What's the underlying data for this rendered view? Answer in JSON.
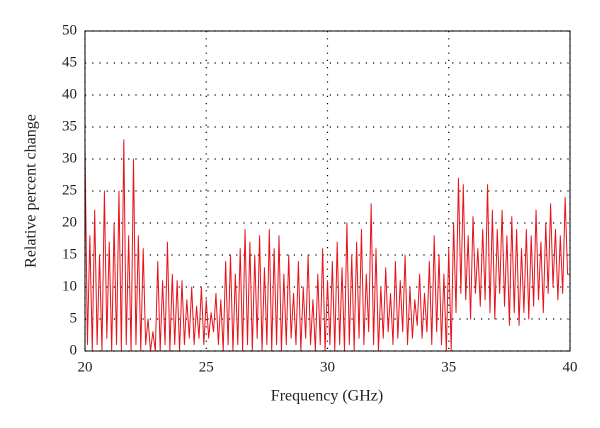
{
  "chart_data": {
    "type": "line",
    "x_label": "Frequency (GHz)",
    "y_label": "Relative percent change",
    "x": [
      20.0,
      20.1,
      20.2,
      20.3,
      20.4,
      20.5,
      20.6,
      20.7,
      20.8,
      20.9,
      21.0,
      21.1,
      21.2,
      21.3,
      21.4,
      21.5,
      21.6,
      21.7,
      21.8,
      21.9,
      22.0,
      22.1,
      22.2,
      22.3,
      22.4,
      22.5,
      22.6,
      22.7,
      22.8,
      22.9,
      23.0,
      23.1,
      23.2,
      23.3,
      23.4,
      23.5,
      23.6,
      23.7,
      23.8,
      23.9,
      24.0,
      24.1,
      24.2,
      24.3,
      24.4,
      24.5,
      24.6,
      24.7,
      24.8,
      24.9,
      25.0,
      25.1,
      25.2,
      25.3,
      25.4,
      25.5,
      25.6,
      25.7,
      25.8,
      25.9,
      26.0,
      26.1,
      26.2,
      26.3,
      26.4,
      26.5,
      26.6,
      26.7,
      26.8,
      26.9,
      27.0,
      27.1,
      27.2,
      27.3,
      27.4,
      27.5,
      27.6,
      27.7,
      27.8,
      27.9,
      28.0,
      28.1,
      28.2,
      28.3,
      28.4,
      28.5,
      28.6,
      28.7,
      28.8,
      28.9,
      29.0,
      29.1,
      29.2,
      29.3,
      29.4,
      29.5,
      29.6,
      29.7,
      29.8,
      29.9,
      30.0,
      30.1,
      30.2,
      30.3,
      30.4,
      30.5,
      30.6,
      30.7,
      30.8,
      30.9,
      31.0,
      31.1,
      31.2,
      31.3,
      31.4,
      31.5,
      31.6,
      31.7,
      31.8,
      31.9,
      32.0,
      32.1,
      32.2,
      32.3,
      32.4,
      32.5,
      32.6,
      32.7,
      32.8,
      32.9,
      33.0,
      33.1,
      33.2,
      33.3,
      33.4,
      33.5,
      33.6,
      33.7,
      33.8,
      33.9,
      34.0,
      34.1,
      34.2,
      34.3,
      34.4,
      34.5,
      34.6,
      34.7,
      34.8,
      34.9,
      35.0,
      35.1,
      35.2,
      35.3,
      35.4,
      35.5,
      35.6,
      35.7,
      35.8,
      35.9,
      36.0,
      36.1,
      36.2,
      36.3,
      36.4,
      36.5,
      36.6,
      36.7,
      36.8,
      36.9,
      37.0,
      37.1,
      37.2,
      37.3,
      37.4,
      37.5,
      37.6,
      37.7,
      37.8,
      37.9,
      38.0,
      38.1,
      38.2,
      38.3,
      38.4,
      38.5,
      38.6,
      38.7,
      38.8,
      38.9,
      39.0,
      39.1,
      39.2,
      39.3,
      39.4,
      39.5,
      39.6,
      39.7,
      39.8,
      39.9,
      40.0
    ],
    "values": [
      32,
      1,
      18,
      0,
      22,
      1,
      15,
      0,
      25,
      2,
      17,
      0,
      20,
      1,
      25,
      0,
      33,
      1,
      18,
      0,
      30,
      1,
      18,
      0,
      16,
      1,
      5,
      0,
      3,
      0,
      14,
      0,
      11,
      1,
      17,
      0,
      12,
      1,
      11,
      0,
      11,
      1,
      8,
      2,
      10,
      1,
      7,
      2,
      10,
      1,
      8,
      2,
      6,
      3,
      9,
      1,
      8,
      0,
      14,
      1,
      15,
      0,
      12,
      1,
      16,
      0,
      19,
      1,
      17,
      0,
      15,
      2,
      18,
      0,
      13,
      1,
      19,
      0,
      16,
      1,
      18,
      0,
      12,
      1,
      15,
      2,
      9,
      1,
      14,
      0,
      10,
      2,
      15,
      1,
      8,
      0,
      12,
      1,
      16,
      0,
      11,
      1,
      14,
      0,
      17,
      1,
      13,
      0,
      20,
      1,
      15,
      0,
      17,
      2,
      19,
      1,
      12,
      3,
      23,
      1,
      16,
      0,
      10,
      2,
      13,
      3,
      9,
      1,
      14,
      2,
      11,
      3,
      15,
      1,
      10,
      2,
      8,
      4,
      12,
      2,
      9,
      3,
      14,
      1,
      18,
      3,
      15,
      1,
      12,
      0,
      16,
      0,
      20,
      6,
      27,
      9,
      26,
      8,
      18,
      5,
      21,
      9,
      16,
      7,
      19,
      8,
      26,
      6,
      22,
      5,
      19,
      9,
      22,
      7,
      18,
      4,
      21,
      6,
      19,
      4,
      16,
      6,
      19,
      5,
      18,
      7,
      22,
      8,
      17,
      6,
      20,
      9,
      23,
      10,
      19,
      8,
      18,
      9,
      24,
      12,
      12
    ],
    "color": "#e8141b",
    "xlim": [
      20,
      40
    ],
    "xticks": [
      20,
      25,
      30,
      35,
      40
    ],
    "ylim": [
      0,
      50
    ],
    "yticks": [
      0,
      5,
      10,
      15,
      20,
      25,
      30,
      35,
      40,
      45,
      50
    ],
    "grid": true
  }
}
